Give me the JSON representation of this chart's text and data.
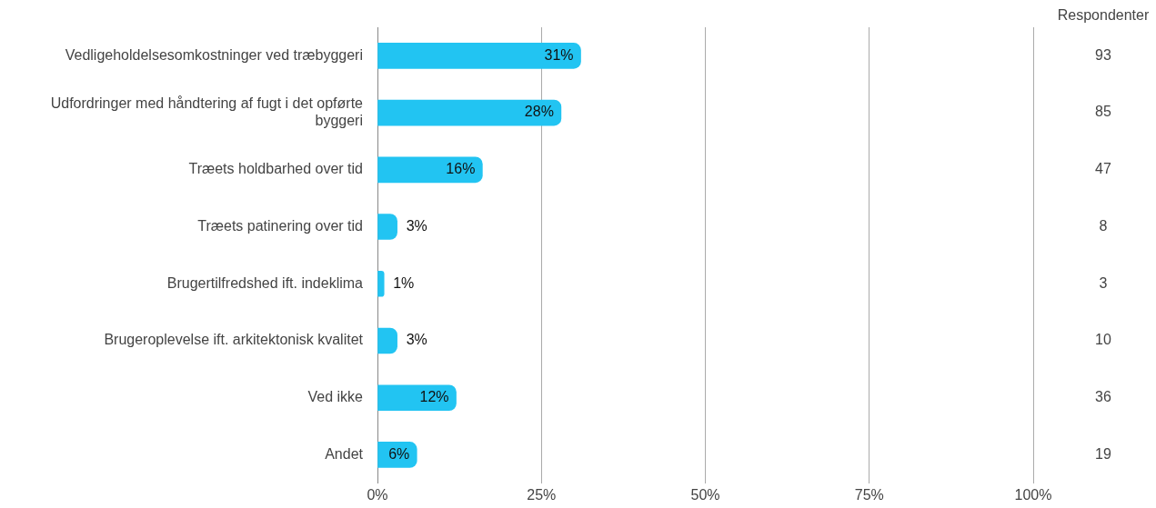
{
  "chart_data": {
    "type": "bar",
    "orientation": "horizontal",
    "categories": [
      "Vedligeholdelsesomkostninger ved træbyggeri",
      "Udfordringer med håndtering af fugt i det opførte byggeri",
      "Træets holdbarhed over tid",
      "Træets patinering over tid",
      "Brugertilfredshed ift. indeklima",
      "Brugeroplevelse ift. arkitektonisk kvalitet",
      "Ved ikke",
      "Andet"
    ],
    "values": [
      31,
      28,
      16,
      3,
      1,
      3,
      12,
      6
    ],
    "color": "#22c4f2",
    "xlim": [
      0,
      100
    ],
    "xticks": [
      {
        "value": 0,
        "label": "0%"
      },
      {
        "value": 25,
        "label": "25%"
      },
      {
        "value": 50,
        "label": "50%"
      },
      {
        "value": 75,
        "label": "75%"
      },
      {
        "value": 100,
        "label": "100%"
      }
    ],
    "grid": "x",
    "legend": false,
    "value_labels": [
      "31%",
      "28%",
      "16%",
      "3%",
      "1%",
      "3%",
      "12%",
      "6%"
    ],
    "annotations": [
      "Respondenter",
      "93",
      "85",
      "47",
      "8",
      "3",
      "10",
      "36",
      "19"
    ]
  }
}
